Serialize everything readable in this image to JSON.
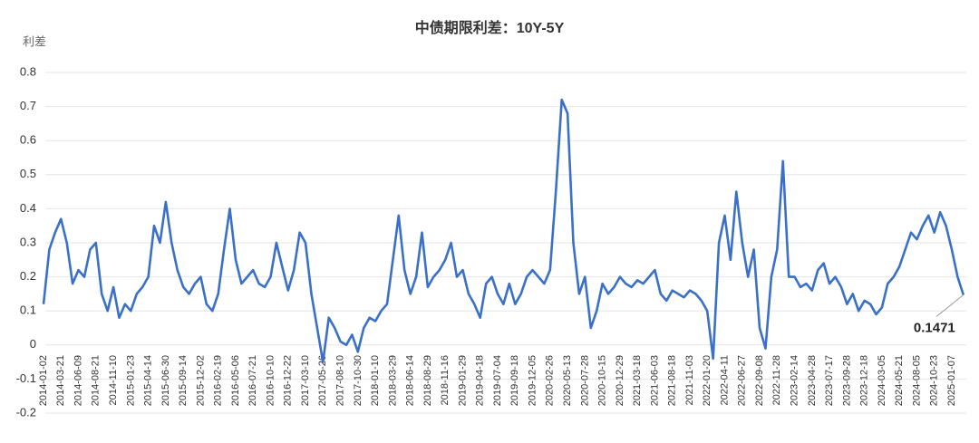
{
  "chart_data": {
    "type": "line",
    "title": "中债期限利差：10Y-5Y",
    "y_label": "利差",
    "annotation": "0.1471",
    "color": "#3a70c8",
    "grid": true,
    "ylim": [
      -0.2,
      0.8
    ],
    "yticks": [
      -0.2,
      -0.1,
      0,
      0.1,
      0.2,
      0.3,
      0.4,
      0.5,
      0.6,
      0.7,
      0.8
    ],
    "categories": [
      "2014-01-02",
      null,
      null,
      "2014-03-21",
      null,
      null,
      "2014-06-09",
      null,
      null,
      "2014-08-21",
      null,
      null,
      "2014-11-10",
      null,
      null,
      "2015-01-23",
      null,
      null,
      "2015-04-14",
      null,
      null,
      "2015-06-30",
      null,
      null,
      "2015-09-14",
      null,
      null,
      "2015-12-02",
      null,
      null,
      "2016-02-19",
      null,
      null,
      "2016-05-06",
      null,
      null,
      "2016-07-21",
      null,
      null,
      "2016-10-10",
      null,
      null,
      "2016-12-22",
      null,
      null,
      "2017-03-10",
      null,
      null,
      "2017-05-26",
      null,
      null,
      "2017-08-10",
      null,
      null,
      "2017-10-30",
      null,
      null,
      "2018-01-10",
      null,
      null,
      "2018-03-29",
      null,
      null,
      "2018-06-14",
      null,
      null,
      "2018-08-29",
      null,
      null,
      "2018-11-16",
      null,
      null,
      "2019-01-29",
      null,
      null,
      "2019-04-18",
      null,
      null,
      "2019-07-04",
      null,
      null,
      "2019-09-18",
      null,
      null,
      "2019-12-05",
      null,
      null,
      "2020-02-26",
      null,
      null,
      "2020-05-13",
      null,
      null,
      "2020-07-28",
      null,
      null,
      "2020-10-15",
      null,
      null,
      "2020-12-29",
      null,
      null,
      "2021-03-18",
      null,
      null,
      "2021-06-03",
      null,
      null,
      "2021-08-18",
      null,
      null,
      "2021-11-03",
      null,
      null,
      "2022-01-20",
      null,
      null,
      "2022-04-11",
      null,
      null,
      "2022-06-27",
      null,
      null,
      "2022-09-08",
      null,
      null,
      "2022-11-28",
      null,
      null,
      "2023-02-14",
      null,
      null,
      "2023-04-28",
      null,
      null,
      "2023-07-17",
      null,
      null,
      "2023-09-28",
      null,
      null,
      "2023-12-18",
      null,
      null,
      "2024-03-05",
      null,
      null,
      "2024-05-21",
      null,
      null,
      "2024-08-05",
      null,
      null,
      "2024-10-23",
      null,
      null,
      "2025-01-07",
      null,
      null
    ],
    "values": [
      0.12,
      0.28,
      0.33,
      0.37,
      0.3,
      0.18,
      0.22,
      0.2,
      0.28,
      0.3,
      0.15,
      0.1,
      0.17,
      0.08,
      0.12,
      0.1,
      0.15,
      0.17,
      0.2,
      0.35,
      0.3,
      0.42,
      0.3,
      0.22,
      0.17,
      0.15,
      0.18,
      0.2,
      0.12,
      0.1,
      0.15,
      0.28,
      0.4,
      0.25,
      0.18,
      0.2,
      0.22,
      0.18,
      0.17,
      0.2,
      0.3,
      0.23,
      0.16,
      0.22,
      0.33,
      0.3,
      0.15,
      0.05,
      -0.05,
      0.08,
      0.05,
      0.01,
      0.0,
      0.03,
      -0.02,
      0.05,
      0.08,
      0.07,
      0.1,
      0.12,
      0.25,
      0.38,
      0.22,
      0.15,
      0.2,
      0.33,
      0.17,
      0.2,
      0.22,
      0.25,
      0.3,
      0.2,
      0.22,
      0.15,
      0.12,
      0.08,
      0.18,
      0.2,
      0.15,
      0.12,
      0.18,
      0.12,
      0.15,
      0.2,
      0.22,
      0.2,
      0.18,
      0.22,
      0.45,
      0.72,
      0.68,
      0.3,
      0.15,
      0.2,
      0.05,
      0.1,
      0.18,
      0.15,
      0.17,
      0.2,
      0.18,
      0.17,
      0.19,
      0.18,
      0.2,
      0.22,
      0.15,
      0.13,
      0.16,
      0.15,
      0.14,
      0.16,
      0.15,
      0.13,
      0.1,
      -0.04,
      0.3,
      0.38,
      0.25,
      0.45,
      0.3,
      0.2,
      0.28,
      0.05,
      -0.01,
      0.2,
      0.28,
      0.54,
      0.2,
      0.2,
      0.17,
      0.18,
      0.16,
      0.22,
      0.24,
      0.18,
      0.2,
      0.17,
      0.12,
      0.15,
      0.1,
      0.13,
      0.12,
      0.09,
      0.11,
      0.18,
      0.2,
      0.23,
      0.28,
      0.33,
      0.31,
      0.35,
      0.38,
      0.33,
      0.39,
      0.35,
      0.28,
      0.2,
      0.1471
    ]
  }
}
